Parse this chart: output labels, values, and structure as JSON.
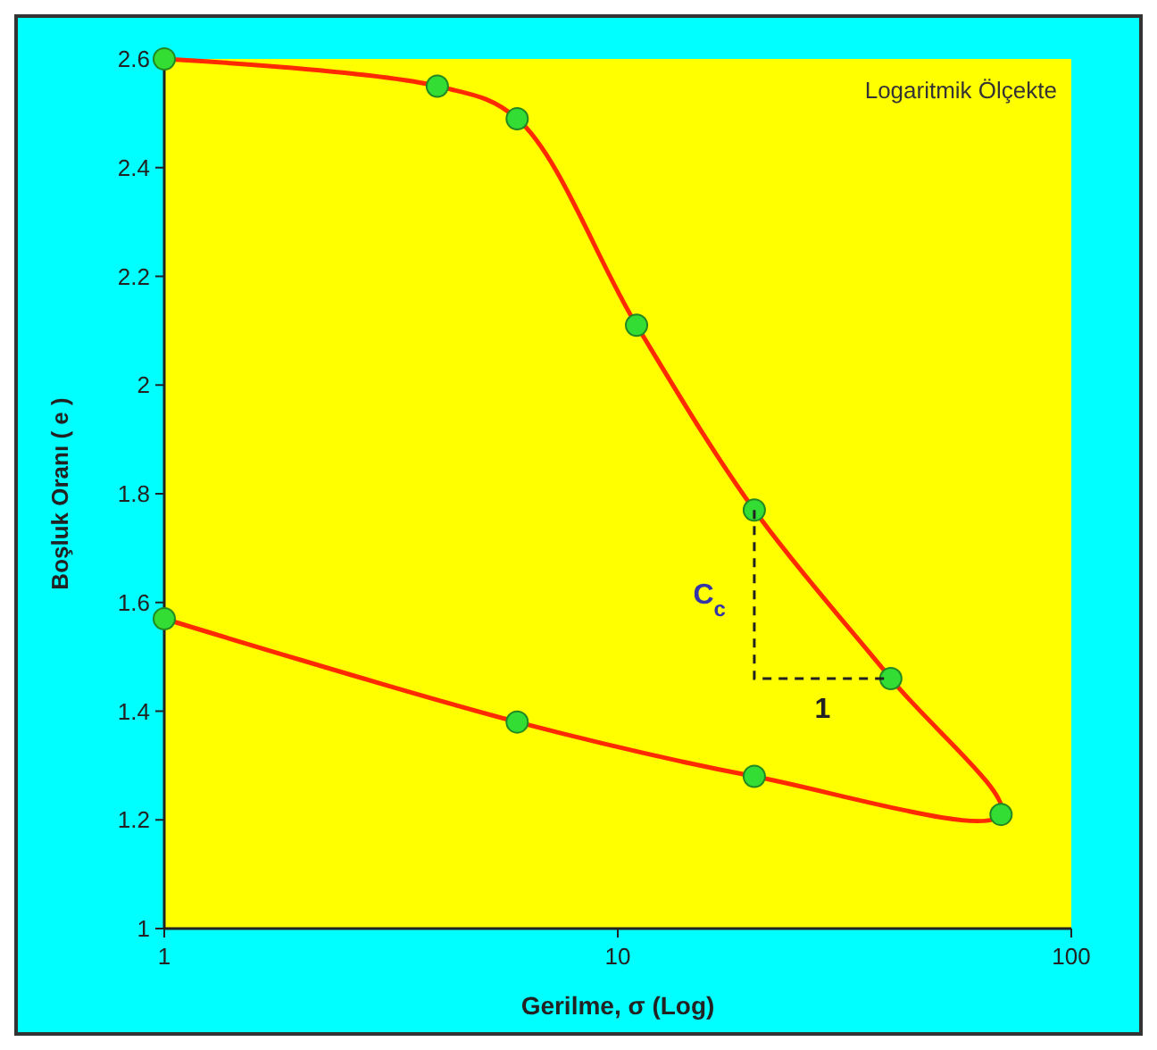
{
  "chart_data": {
    "type": "line",
    "xlabel": "Gerilme, σ (Log)",
    "ylabel": "Boşluk Oranı ( e )",
    "x": [
      1,
      4,
      6,
      11,
      20,
      40,
      70,
      20,
      6,
      1
    ],
    "series": [
      {
        "color": "#ff2a00",
        "values": [
          2.6,
          2.55,
          2.49,
          2.11,
          1.77,
          1.46,
          1.21,
          1.28,
          1.38,
          1.57
        ]
      }
    ],
    "marker": "circle",
    "log": "x",
    "grid": false,
    "xlim": [
      1,
      100
    ],
    "xticks": [
      1,
      10,
      100
    ],
    "ylim": [
      1,
      2.6
    ],
    "yticks": [
      1,
      1.2,
      1.4,
      1.6,
      1.8,
      2,
      2.2,
      2.4,
      2.6
    ],
    "annotations": [
      "Logaritmik Ölçekte",
      "C$_{c}$",
      "1"
    ]
  }
}
